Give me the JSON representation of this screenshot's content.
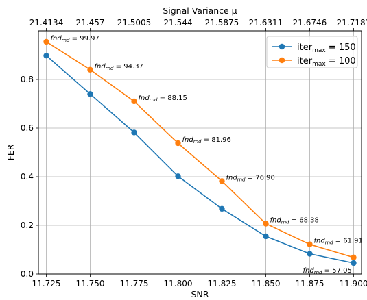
{
  "chart_data": {
    "type": "line",
    "x": [
      11.725,
      11.75,
      11.775,
      11.8,
      11.825,
      11.85,
      11.875,
      11.9
    ],
    "x_tick_labels": [
      "11.725",
      "11.750",
      "11.775",
      "11.800",
      "11.825",
      "11.850",
      "11.875",
      "11.900"
    ],
    "top_axis": {
      "label": "Signal Variance μ",
      "tick_labels": [
        "21.4134",
        "21.457",
        "21.5005",
        "21.544",
        "21.5875",
        "21.6311",
        "21.6746",
        "21.7181"
      ]
    },
    "xlabel": "SNR",
    "ylabel": "FER",
    "xlim": [
      11.7205,
      11.9045
    ],
    "ylim": [
      0.0,
      1.0
    ],
    "y_ticks": [
      0.0,
      0.2,
      0.4,
      0.6,
      0.8
    ],
    "y_tick_labels": [
      "0.0",
      "0.2",
      "0.4",
      "0.6",
      "0.8"
    ],
    "grid": true,
    "legend_position": "top-right",
    "series": [
      {
        "name_base": "iter",
        "name_sub": "max",
        "name_value": " = 150",
        "color": "#1f77b4",
        "values": [
          0.898,
          0.74,
          0.582,
          0.402,
          0.268,
          0.155,
          0.083,
          0.045
        ]
      },
      {
        "name_base": "iter",
        "name_sub": "max",
        "name_value": " = 100",
        "color": "#ff7f0e",
        "values": [
          0.955,
          0.84,
          0.71,
          0.538,
          0.382,
          0.207,
          0.122,
          0.068
        ]
      }
    ],
    "annotations": [
      {
        "x": 11.725,
        "y": 0.955,
        "base": "fnd",
        "sub": "rnd",
        "value": " = 99.97",
        "dx": 6,
        "dy": -2
      },
      {
        "x": 11.75,
        "y": 0.84,
        "base": "fnd",
        "sub": "rnd",
        "value": " = 94.37",
        "dx": 6,
        "dy": -2
      },
      {
        "x": 11.775,
        "y": 0.71,
        "base": "fnd",
        "sub": "rnd",
        "value": " = 88.15",
        "dx": 6,
        "dy": -2
      },
      {
        "x": 11.8,
        "y": 0.538,
        "base": "fnd",
        "sub": "rnd",
        "value": " = 81.96",
        "dx": 6,
        "dy": -2
      },
      {
        "x": 11.825,
        "y": 0.382,
        "base": "fnd",
        "sub": "rnd",
        "value": " = 76.90",
        "dx": 6,
        "dy": -2
      },
      {
        "x": 11.85,
        "y": 0.207,
        "base": "fnd",
        "sub": "rnd",
        "value": " = 68.38",
        "dx": 6,
        "dy": -2
      },
      {
        "x": 11.875,
        "y": 0.122,
        "base": "fnd",
        "sub": "rnd",
        "value": " = 61.91",
        "dx": 6,
        "dy": -2
      },
      {
        "x": 11.9,
        "y": 0.045,
        "base": "fnd",
        "sub": "rnd",
        "value": " = 57.05",
        "dx": -74,
        "dy": 14
      }
    ]
  }
}
